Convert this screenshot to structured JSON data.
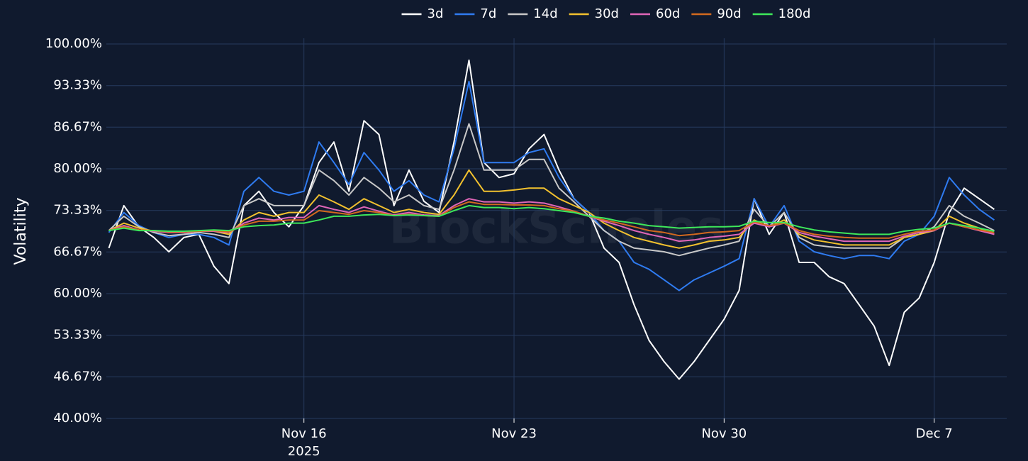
{
  "chart_data": {
    "type": "line",
    "y_label": "Volatility",
    "watermark": "BlockScholes",
    "x_year_label": "2025",
    "grid": true,
    "legend": "top",
    "xlim": [
      "2025-11-09T10:00",
      "2025-12-09T10:00"
    ],
    "xticks": [
      {
        "value": "2025-11-16T00:00",
        "label": "Nov 16"
      },
      {
        "value": "2025-11-23T00:00",
        "label": "Nov 23"
      },
      {
        "value": "2025-11-30T00:00",
        "label": "Nov 30"
      },
      {
        "value": "2025-12-07T00:00",
        "label": "Dec 7"
      }
    ],
    "ylim": [
      40,
      100
    ],
    "yticks": [
      {
        "value": 40,
        "label": "40.00%"
      },
      {
        "value": 46.67,
        "label": "46.67%"
      },
      {
        "value": 53.33,
        "label": "53.33%"
      },
      {
        "value": 60,
        "label": "60.00%"
      },
      {
        "value": 66.67,
        "label": "66.67%"
      },
      {
        "value": 73.33,
        "label": "73.33%"
      },
      {
        "value": 80,
        "label": "80.00%"
      },
      {
        "value": 86.67,
        "label": "86.67%"
      },
      {
        "value": 93.33,
        "label": "93.33%"
      },
      {
        "value": 100,
        "label": "100.00%"
      }
    ],
    "x": [
      "2025-11-09T12:00",
      "2025-11-10T00:00",
      "2025-11-10T12:00",
      "2025-11-11T00:00",
      "2025-11-11T12:00",
      "2025-11-12T00:00",
      "2025-11-12T12:00",
      "2025-11-13T00:00",
      "2025-11-13T12:00",
      "2025-11-14T00:00",
      "2025-11-14T12:00",
      "2025-11-15T00:00",
      "2025-11-15T12:00",
      "2025-11-16T00:00",
      "2025-11-16T12:00",
      "2025-11-17T00:00",
      "2025-11-17T12:00",
      "2025-11-18T00:00",
      "2025-11-18T12:00",
      "2025-11-19T00:00",
      "2025-11-19T12:00",
      "2025-11-20T00:00",
      "2025-11-20T12:00",
      "2025-11-21T00:00",
      "2025-11-21T12:00",
      "2025-11-22T00:00",
      "2025-11-22T12:00",
      "2025-11-23T00:00",
      "2025-11-23T12:00",
      "2025-11-24T00:00",
      "2025-11-24T12:00",
      "2025-11-25T00:00",
      "2025-11-25T12:00",
      "2025-11-26T00:00",
      "2025-11-26T12:00",
      "2025-11-27T00:00",
      "2025-11-27T12:00",
      "2025-11-28T00:00",
      "2025-11-28T12:00",
      "2025-11-29T00:00",
      "2025-11-29T12:00",
      "2025-11-30T00:00",
      "2025-11-30T12:00",
      "2025-12-01T00:00",
      "2025-12-01T12:00",
      "2025-12-02T00:00",
      "2025-12-02T12:00",
      "2025-12-03T00:00",
      "2025-12-03T12:00",
      "2025-12-04T00:00",
      "2025-12-04T12:00",
      "2025-12-05T00:00",
      "2025-12-05T12:00",
      "2025-12-06T00:00",
      "2025-12-06T12:00",
      "2025-12-07T00:00",
      "2025-12-07T12:00",
      "2025-12-08T00:00",
      "2025-12-08T12:00",
      "2025-12-09T00:00"
    ],
    "series": [
      {
        "name": "3d",
        "color": "#ffffff",
        "values": [
          67.3,
          74.1,
          70.7,
          69,
          66.7,
          69,
          69.5,
          64.4,
          61.6,
          74.1,
          76.4,
          73,
          70.7,
          74.1,
          81,
          84.3,
          76.4,
          87.7,
          85.5,
          74.1,
          79.8,
          74.8,
          73,
          84.3,
          97.4,
          81,
          78.6,
          79.2,
          83.2,
          85.5,
          79.8,
          75.2,
          73,
          67.3,
          65,
          58.2,
          52.5,
          49.1,
          46.3,
          49.1,
          52.5,
          55.9,
          60.5,
          75.2,
          69.5,
          73,
          65,
          65,
          62.7,
          61.6,
          58.2,
          54.8,
          48.5,
          57,
          59.3,
          65,
          73,
          76.9,
          75.2,
          73.5
        ]
      },
      {
        "name": "7d",
        "color": "#2f7bf0",
        "values": [
          69.8,
          73,
          70.9,
          69.8,
          69,
          69.5,
          69.5,
          69,
          67.8,
          76.4,
          78.6,
          76.4,
          75.8,
          76.4,
          84.3,
          81,
          77.5,
          82.6,
          79.8,
          76.4,
          78.1,
          75.8,
          74.7,
          83.2,
          94,
          81,
          81,
          81,
          82.6,
          83.2,
          78.6,
          75.2,
          73,
          70.1,
          68.4,
          65,
          63.9,
          62.2,
          60.5,
          62.2,
          63.3,
          64.4,
          65.6,
          75.2,
          70.7,
          74.1,
          68.4,
          66.7,
          66.1,
          65.6,
          66.1,
          66.1,
          65.6,
          68.4,
          69.5,
          72.4,
          78.6,
          75.8,
          73.5,
          71.8
        ]
      },
      {
        "name": "14d",
        "color": "#c8c8c8",
        "values": [
          70.1,
          72.4,
          70.7,
          69.8,
          69.3,
          69.5,
          69.8,
          69.5,
          69,
          74.1,
          75.2,
          74.1,
          74.1,
          74.1,
          79.8,
          78.1,
          75.8,
          78.6,
          76.9,
          74.7,
          75.8,
          74.1,
          73.5,
          79.8,
          87.2,
          79.8,
          79.8,
          79.8,
          81.5,
          81.5,
          76.9,
          74.7,
          72.4,
          70.1,
          68.4,
          67.3,
          67,
          66.7,
          66.1,
          66.7,
          67.3,
          67.8,
          68.4,
          73.5,
          70.7,
          73,
          69,
          67.8,
          67.5,
          67.3,
          67.3,
          67.3,
          67.3,
          69,
          69.5,
          70.7,
          74.1,
          72.4,
          71.3,
          70.1
        ]
      },
      {
        "name": "30d",
        "color": "#f2c12e",
        "values": [
          70.1,
          71.3,
          70.5,
          70,
          69.8,
          69.8,
          70,
          70,
          69.5,
          71.8,
          73,
          72.4,
          73,
          73,
          75.8,
          74.7,
          73.5,
          75.2,
          74.1,
          73,
          73.5,
          73,
          72.7,
          75.8,
          79.8,
          76.4,
          76.4,
          76.6,
          76.9,
          76.9,
          75.2,
          74.1,
          73,
          71.3,
          70.1,
          69,
          68.4,
          67.8,
          67.3,
          67.8,
          68.4,
          68.6,
          69,
          71.8,
          70.7,
          71.8,
          69.5,
          68.6,
          68.2,
          67.8,
          67.8,
          67.8,
          67.8,
          69,
          69.5,
          70.1,
          72.4,
          71.3,
          70.5,
          69.5
        ]
      },
      {
        "name": "60d",
        "color": "#e066b8",
        "values": [
          70.1,
          70.9,
          70.2,
          70,
          69.8,
          69.8,
          70,
          70,
          69.8,
          71.3,
          72.1,
          71.8,
          72.2,
          72.2,
          74.1,
          73.5,
          73,
          73.9,
          73.2,
          72.6,
          73,
          72.6,
          72.5,
          74.1,
          75.2,
          74.7,
          74.7,
          74.5,
          74.7,
          74.5,
          73.9,
          73.2,
          72.4,
          71.6,
          70.9,
          70.1,
          69.5,
          69,
          68.4,
          68.6,
          69,
          69.2,
          69.5,
          71.3,
          70.7,
          71.3,
          69.8,
          69.2,
          68.8,
          68.4,
          68.4,
          68.4,
          68.4,
          69.2,
          69.8,
          70.1,
          71.3,
          70.7,
          70.1,
          69.5
        ]
      },
      {
        "name": "90d",
        "color": "#d2691e",
        "values": [
          70.1,
          70.7,
          70.2,
          70.1,
          69.9,
          69.9,
          70,
          70.1,
          69.9,
          71,
          71.6,
          71.6,
          71.8,
          71.8,
          73.3,
          73,
          72.7,
          73.3,
          73,
          72.5,
          72.7,
          72.5,
          72.4,
          73.8,
          74.7,
          74.3,
          74.3,
          74.2,
          74.2,
          74.1,
          73.6,
          73.2,
          72.4,
          71.8,
          71.3,
          70.7,
          70.1,
          69.8,
          69.3,
          69.5,
          69.8,
          69.9,
          70.1,
          71.5,
          70.9,
          71.3,
          70.1,
          69.5,
          69.2,
          69,
          68.9,
          68.9,
          68.9,
          69.5,
          70,
          70.2,
          71.3,
          70.7,
          70.2,
          69.8
        ]
      },
      {
        "name": "180d",
        "color": "#3ee85a",
        "values": [
          70.1,
          70.5,
          70.1,
          70.1,
          70,
          70,
          70.1,
          70.2,
          70.1,
          70.7,
          70.9,
          71,
          71.3,
          71.3,
          71.8,
          72.4,
          72.4,
          72.6,
          72.7,
          72.5,
          72.6,
          72.5,
          72.4,
          73.3,
          74.1,
          73.8,
          73.8,
          73.6,
          73.8,
          73.6,
          73.3,
          73,
          72.4,
          72.1,
          71.6,
          71.3,
          70.9,
          70.7,
          70.5,
          70.6,
          70.7,
          70.7,
          70.8,
          71.6,
          71.4,
          71.4,
          70.7,
          70.2,
          69.9,
          69.7,
          69.5,
          69.5,
          69.5,
          70,
          70.3,
          70.5,
          71.3,
          70.9,
          70.5,
          70
        ]
      }
    ]
  }
}
